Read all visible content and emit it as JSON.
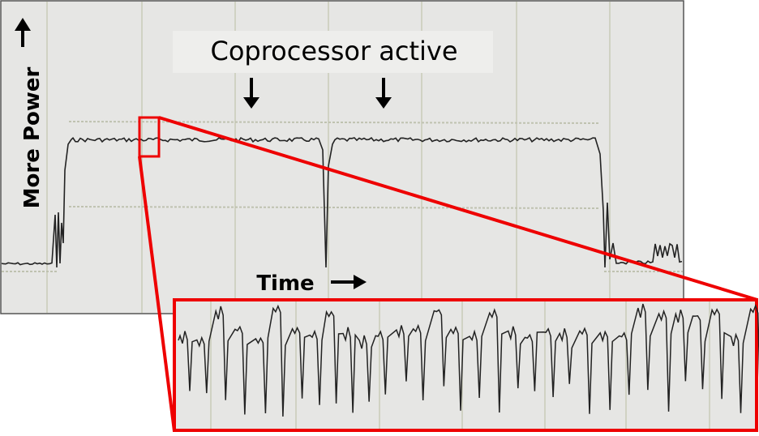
{
  "labels": {
    "annotation": "Coprocessor active",
    "y_axis": "More Power",
    "x_axis": "Time"
  }
}
